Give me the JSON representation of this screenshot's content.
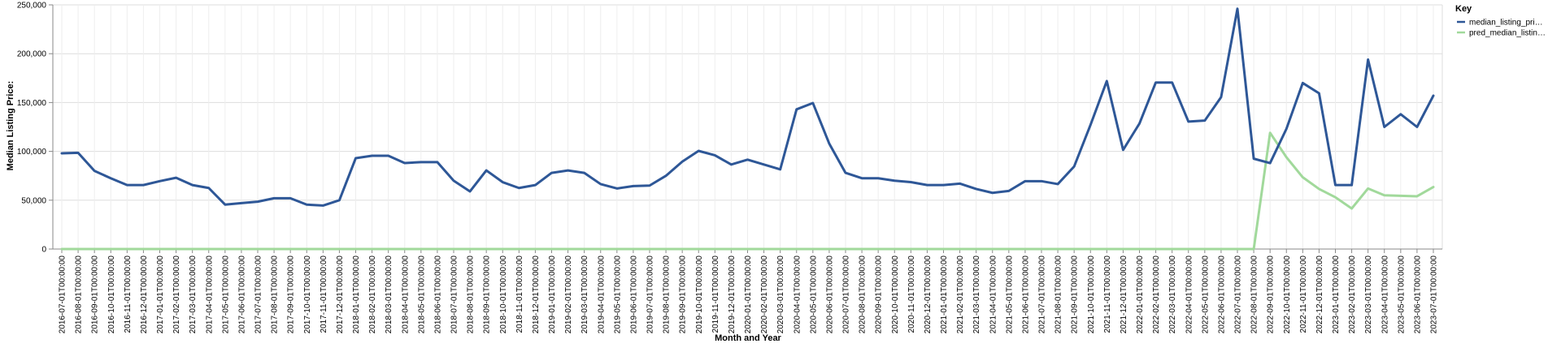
{
  "chart_data": {
    "type": "line",
    "xlabel": "Month and Year",
    "ylabel": "Median Listing Price:",
    "ylim": [
      0,
      250000
    ],
    "yticks": [
      "0",
      "50,000",
      "100,000",
      "150,000",
      "200,000",
      "250,000"
    ],
    "ytick_values": [
      0,
      50000,
      100000,
      150000,
      200000,
      250000
    ],
    "grid": true,
    "legend": {
      "title": "Key",
      "placement": "top-right",
      "entries": [
        "median_listing_pri…",
        "pred_median_listin…"
      ]
    },
    "x": [
      "2016-07-01T00:00:00",
      "2016-08-01T00:00:00",
      "2016-09-01T00:00:00",
      "2016-10-01T00:00:00",
      "2016-11-01T00:00:00",
      "2016-12-01T00:00:00",
      "2017-01-01T00:00:00",
      "2017-02-01T00:00:00",
      "2017-03-01T00:00:00",
      "2017-04-01T00:00:00",
      "2017-05-01T00:00:00",
      "2017-06-01T00:00:00",
      "2017-07-01T00:00:00",
      "2017-08-01T00:00:00",
      "2017-09-01T00:00:00",
      "2017-10-01T00:00:00",
      "2017-11-01T00:00:00",
      "2017-12-01T00:00:00",
      "2018-01-01T00:00:00",
      "2018-02-01T00:00:00",
      "2018-03-01T00:00:00",
      "2018-04-01T00:00:00",
      "2018-05-01T00:00:00",
      "2018-06-01T00:00:00",
      "2018-07-01T00:00:00",
      "2018-08-01T00:00:00",
      "2018-09-01T00:00:00",
      "2018-10-01T00:00:00",
      "2018-11-01T00:00:00",
      "2018-12-01T00:00:00",
      "2019-01-01T00:00:00",
      "2019-02-01T00:00:00",
      "2019-03-01T00:00:00",
      "2019-04-01T00:00:00",
      "2019-05-01T00:00:00",
      "2019-06-01T00:00:00",
      "2019-07-01T00:00:00",
      "2019-08-01T00:00:00",
      "2019-09-01T00:00:00",
      "2019-10-01T00:00:00",
      "2019-11-01T00:00:00",
      "2019-12-01T00:00:00",
      "2020-01-01T00:00:00",
      "2020-02-01T00:00:00",
      "2020-03-01T00:00:00",
      "2020-04-01T00:00:00",
      "2020-05-01T00:00:00",
      "2020-06-01T00:00:00",
      "2020-07-01T00:00:00",
      "2020-08-01T00:00:00",
      "2020-09-01T00:00:00",
      "2020-10-01T00:00:00",
      "2020-11-01T00:00:00",
      "2020-12-01T00:00:00",
      "2021-01-01T00:00:00",
      "2021-02-01T00:00:00",
      "2021-03-01T00:00:00",
      "2021-04-01T00:00:00",
      "2021-05-01T00:00:00",
      "2021-06-01T00:00:00",
      "2021-07-01T00:00:00",
      "2021-08-01T00:00:00",
      "2021-09-01T00:00:00",
      "2021-10-01T00:00:00",
      "2021-11-01T00:00:00",
      "2021-12-01T00:00:00",
      "2022-01-01T00:00:00",
      "2022-02-01T00:00:00",
      "2022-03-01T00:00:00",
      "2022-04-01T00:00:00",
      "2022-05-01T00:00:00",
      "2022-06-01T00:00:00",
      "2022-07-01T00:00:00",
      "2022-08-01T00:00:00",
      "2022-09-01T00:00:00",
      "2022-10-01T00:00:00",
      "2022-11-01T00:00:00",
      "2022-12-01T00:00:00",
      "2023-01-01T00:00:00",
      "2023-02-01T00:00:00",
      "2023-03-01T00:00:00",
      "2023-04-01T00:00:00",
      "2023-05-01T00:00:00",
      "2023-06-01T00:00:00",
      "2023-07-01T00:00:00"
    ],
    "series": [
      {
        "name": "median_listing_pri…",
        "color": "#2e5797",
        "values": [
          98000,
          98500,
          80000,
          72500,
          65500,
          65500,
          69500,
          73000,
          65500,
          62500,
          45500,
          47000,
          48500,
          52000,
          52000,
          45500,
          44500,
          50000,
          93000,
          95500,
          95500,
          88000,
          89000,
          89000,
          70000,
          59000,
          80500,
          68500,
          62500,
          65500,
          78000,
          80500,
          78000,
          66500,
          62000,
          64500,
          65000,
          75000,
          89500,
          100500,
          96000,
          86500,
          91500,
          86500,
          81500,
          143000,
          149500,
          108000,
          78000,
          72500,
          72500,
          70000,
          68500,
          65500,
          65500,
          67000,
          61500,
          57500,
          59500,
          69500,
          69500,
          66500,
          84500,
          127000,
          172000,
          101500,
          128500,
          170500,
          170500,
          130500,
          131500,
          155500,
          246000,
          92500,
          88000,
          123000,
          170000,
          159500,
          65500,
          65500,
          194000,
          125000,
          138000,
          125000,
          157000
        ]
      },
      {
        "name": "pred_median_listin…",
        "color": "#a1d99b",
        "values": [
          0,
          0,
          0,
          0,
          0,
          0,
          0,
          0,
          0,
          0,
          0,
          0,
          0,
          0,
          0,
          0,
          0,
          0,
          0,
          0,
          0,
          0,
          0,
          0,
          0,
          0,
          0,
          0,
          0,
          0,
          0,
          0,
          0,
          0,
          0,
          0,
          0,
          0,
          0,
          0,
          0,
          0,
          0,
          0,
          0,
          0,
          0,
          0,
          0,
          0,
          0,
          0,
          0,
          0,
          0,
          0,
          0,
          0,
          0,
          0,
          0,
          0,
          0,
          0,
          0,
          0,
          0,
          0,
          0,
          0,
          0,
          0,
          0,
          0,
          119000,
          94000,
          73500,
          61500,
          53000,
          41500,
          62000,
          55000,
          54500,
          54000,
          63500
        ]
      }
    ]
  }
}
